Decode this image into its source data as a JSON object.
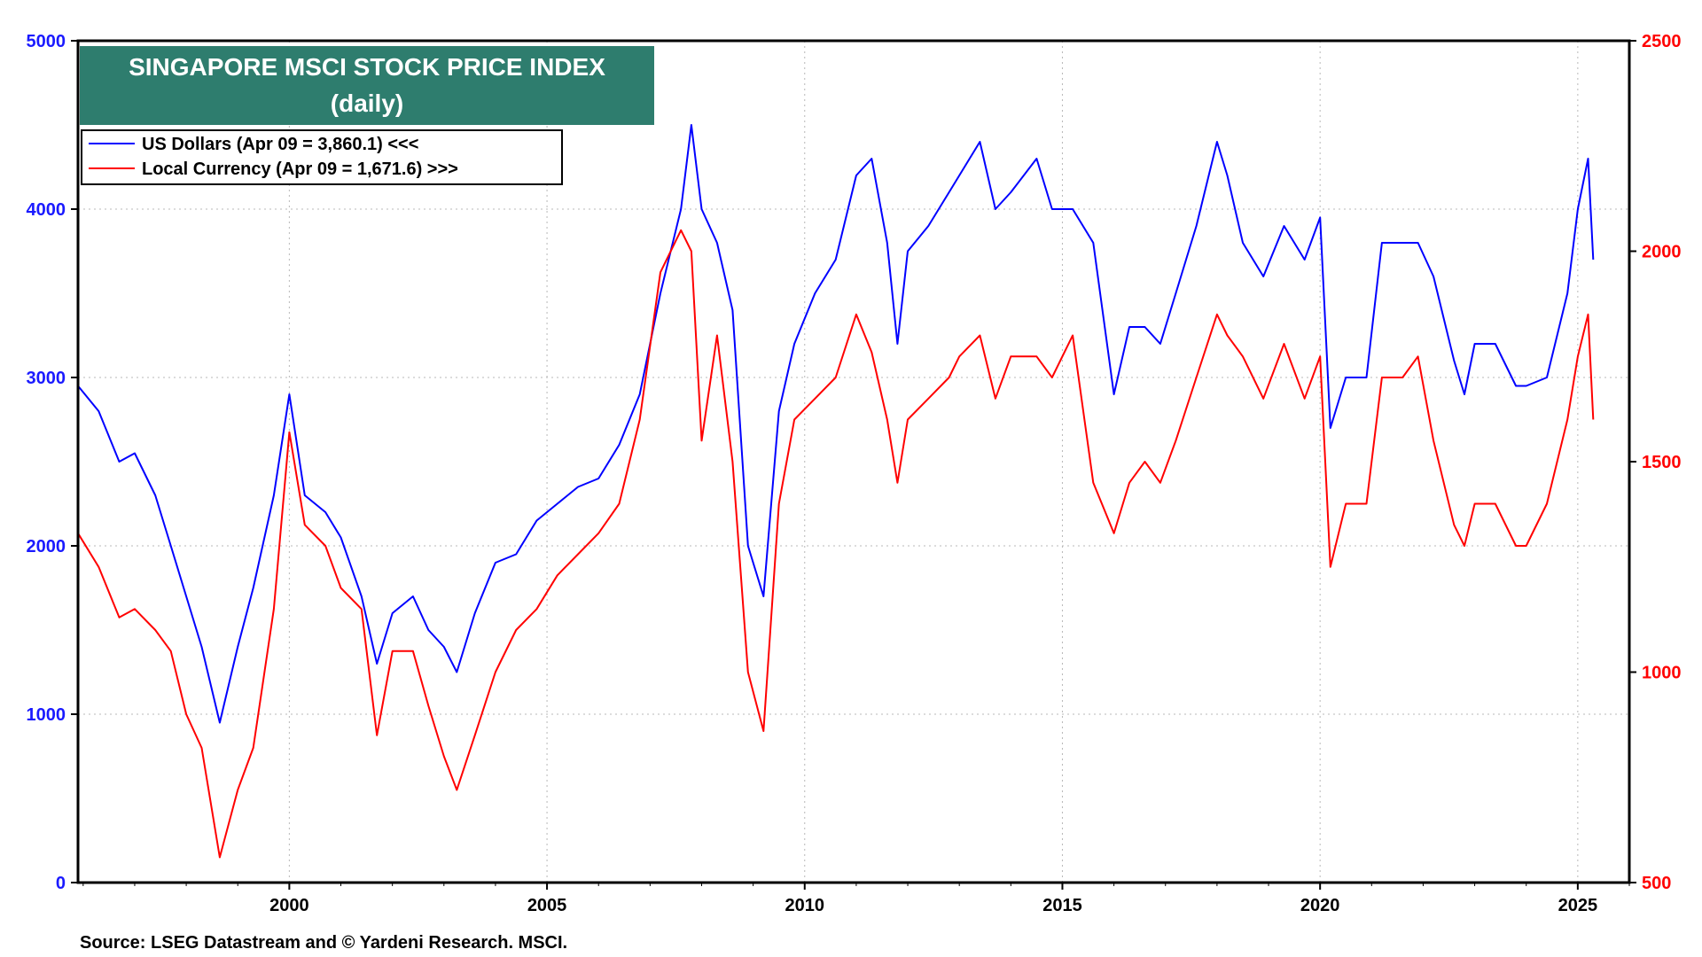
{
  "chart_data": {
    "type": "line",
    "title": "SINGAPORE MSCI STOCK PRICE INDEX",
    "subtitle": "(daily)",
    "source": "Source: LSEG Datastream and © Yardeni Research. MSCI.",
    "x_range": [
      1995.9,
      2026.0
    ],
    "x_ticks": [
      2000,
      2005,
      2010,
      2015,
      2020,
      2025
    ],
    "left_axis": {
      "ylim": [
        0,
        5000
      ],
      "ticks": [
        0,
        1000,
        2000,
        3000,
        4000,
        5000
      ],
      "color": "#1a1aff"
    },
    "right_axis": {
      "ylim": [
        500,
        2500
      ],
      "ticks": [
        500,
        1000,
        1500,
        2000,
        2500
      ],
      "color": "#ff0000"
    },
    "grid": true,
    "legend_position": "top-left",
    "series": [
      {
        "name": "US Dollars (Apr 09 = 3,860.1) <<<",
        "axis": "left",
        "color": "#0000ff",
        "x": [
          1995.9,
          1996.3,
          1996.7,
          1997.0,
          1997.4,
          1997.7,
          1998.0,
          1998.3,
          1998.65,
          1999.0,
          1999.3,
          1999.7,
          2000.0,
          2000.3,
          2000.7,
          2001.0,
          2001.4,
          2001.7,
          2002.0,
          2002.4,
          2002.7,
          2003.0,
          2003.25,
          2003.6,
          2004.0,
          2004.4,
          2004.8,
          2005.2,
          2005.6,
          2006.0,
          2006.4,
          2006.8,
          2007.2,
          2007.6,
          2007.8,
          2008.0,
          2008.3,
          2008.6,
          2008.9,
          2009.2,
          2009.5,
          2009.8,
          2010.2,
          2010.6,
          2011.0,
          2011.3,
          2011.6,
          2011.8,
          2012.0,
          2012.4,
          2012.8,
          2013.0,
          2013.4,
          2013.7,
          2014.0,
          2014.5,
          2014.8,
          2015.2,
          2015.6,
          2016.0,
          2016.3,
          2016.6,
          2016.9,
          2017.2,
          2017.6,
          2018.0,
          2018.2,
          2018.5,
          2018.9,
          2019.3,
          2019.7,
          2020.0,
          2020.2,
          2020.5,
          2020.9,
          2021.2,
          2021.6,
          2021.9,
          2022.2,
          2022.6,
          2022.8,
          2023.0,
          2023.4,
          2023.8,
          2024.0,
          2024.4,
          2024.8,
          2025.0,
          2025.2,
          2025.3
        ],
        "values": [
          2950,
          2800,
          2500,
          2550,
          2300,
          2000,
          1700,
          1400,
          950,
          1400,
          1750,
          2300,
          2900,
          2300,
          2200,
          2050,
          1700,
          1300,
          1600,
          1700,
          1500,
          1400,
          1250,
          1600,
          1900,
          1950,
          2150,
          2250,
          2350,
          2400,
          2600,
          2900,
          3500,
          4000,
          4500,
          4000,
          3800,
          3400,
          2000,
          1700,
          2800,
          3200,
          3500,
          3700,
          4200,
          4300,
          3800,
          3200,
          3750,
          3900,
          4100,
          4200,
          4400,
          4000,
          4100,
          4300,
          4000,
          4000,
          3800,
          2900,
          3300,
          3300,
          3200,
          3500,
          3900,
          4400,
          4200,
          3800,
          3600,
          3900,
          3700,
          3950,
          2700,
          3000,
          3000,
          3800,
          3800,
          3800,
          3600,
          3100,
          2900,
          3200,
          3200,
          2950,
          2950,
          3000,
          3500,
          4000,
          4300,
          3700
        ]
      },
      {
        "name": "Local Currency (Apr 09 = 1,671.6) >>>",
        "axis": "right",
        "color": "#ff0000",
        "x": [
          1995.9,
          1996.3,
          1996.7,
          1997.0,
          1997.4,
          1997.7,
          1998.0,
          1998.3,
          1998.65,
          1999.0,
          1999.3,
          1999.7,
          2000.0,
          2000.3,
          2000.7,
          2001.0,
          2001.4,
          2001.7,
          2002.0,
          2002.4,
          2002.7,
          2003.0,
          2003.25,
          2003.6,
          2004.0,
          2004.4,
          2004.8,
          2005.2,
          2005.6,
          2006.0,
          2006.4,
          2006.8,
          2007.2,
          2007.6,
          2007.8,
          2008.0,
          2008.3,
          2008.6,
          2008.9,
          2009.2,
          2009.5,
          2009.8,
          2010.2,
          2010.6,
          2011.0,
          2011.3,
          2011.6,
          2011.8,
          2012.0,
          2012.4,
          2012.8,
          2013.0,
          2013.4,
          2013.7,
          2014.0,
          2014.5,
          2014.8,
          2015.2,
          2015.6,
          2016.0,
          2016.3,
          2016.6,
          2016.9,
          2017.2,
          2017.6,
          2018.0,
          2018.2,
          2018.5,
          2018.9,
          2019.3,
          2019.7,
          2020.0,
          2020.2,
          2020.5,
          2020.9,
          2021.2,
          2021.6,
          2021.9,
          2022.2,
          2022.6,
          2022.8,
          2023.0,
          2023.4,
          2023.8,
          2024.0,
          2024.4,
          2024.8,
          2025.0,
          2025.2,
          2025.3
        ],
        "values": [
          1330,
          1250,
          1130,
          1150,
          1100,
          1050,
          900,
          820,
          560,
          720,
          820,
          1150,
          1570,
          1350,
          1300,
          1200,
          1150,
          850,
          1050,
          1050,
          920,
          800,
          720,
          850,
          1000,
          1100,
          1150,
          1230,
          1280,
          1330,
          1400,
          1600,
          1950,
          2050,
          2000,
          1550,
          1800,
          1500,
          1000,
          860,
          1400,
          1600,
          1650,
          1700,
          1850,
          1760,
          1600,
          1450,
          1600,
          1650,
          1700,
          1750,
          1800,
          1650,
          1750,
          1750,
          1700,
          1800,
          1450,
          1330,
          1450,
          1500,
          1450,
          1550,
          1700,
          1850,
          1800,
          1750,
          1650,
          1780,
          1650,
          1750,
          1250,
          1400,
          1400,
          1700,
          1700,
          1750,
          1550,
          1350,
          1300,
          1400,
          1400,
          1300,
          1300,
          1400,
          1600,
          1750,
          1850,
          1600
        ]
      }
    ]
  }
}
